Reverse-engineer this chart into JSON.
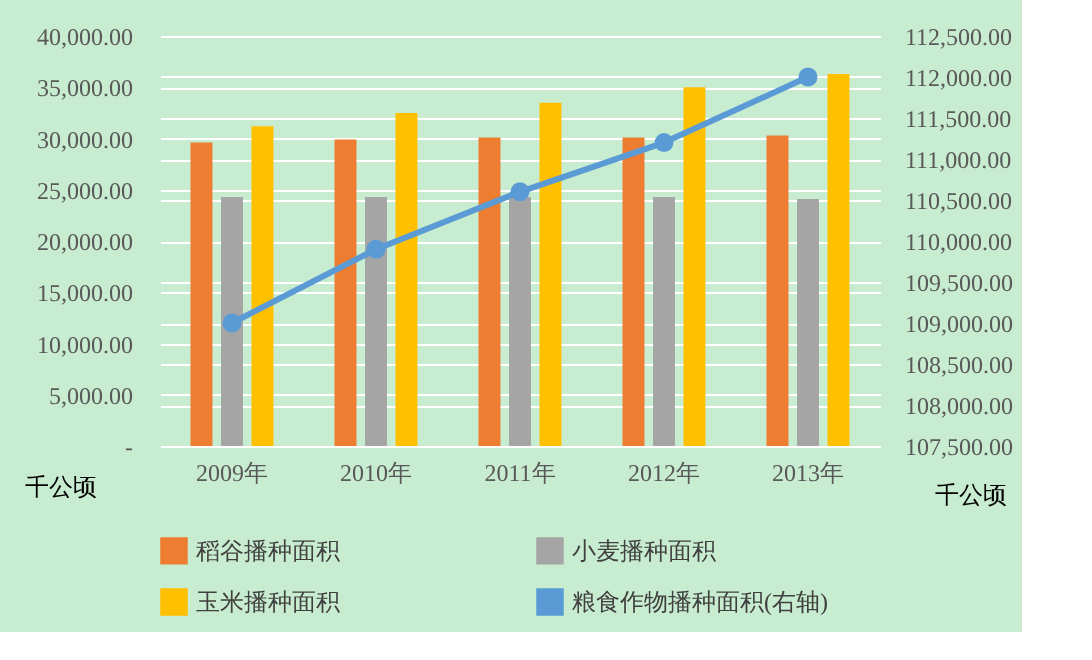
{
  "chart_data": {
    "type": "bar",
    "categories": [
      "2009年",
      "2010年",
      "2011年",
      "2012年",
      "2013年"
    ],
    "series": [
      {
        "name": "稻谷播种面积",
        "color": "#ed7d31",
        "values": [
          29600,
          29900,
          30100,
          30100,
          30300
        ]
      },
      {
        "name": "小麦播种面积",
        "color": "#a5a5a5",
        "values": [
          24300,
          24300,
          24300,
          24300,
          24100
        ]
      },
      {
        "name": "玉米播种面积",
        "color": "#ffc000",
        "values": [
          31200,
          32500,
          33500,
          35000,
          36300
        ]
      },
      {
        "name": "粮食作物播种面积(右轴)",
        "color": "#5b9bd5",
        "type": "line",
        "axis": "y2",
        "marker": "circle",
        "line_style": "solid",
        "values": [
          109000,
          109900,
          110600,
          111200,
          112000
        ]
      }
    ],
    "ylabel": "千公顷",
    "y2label": "千公顷",
    "ylim": [
      0,
      40000
    ],
    "yticks": [
      {
        "value": 0,
        "label": "-"
      },
      {
        "value": 5000,
        "label": "5,000.00"
      },
      {
        "value": 10000,
        "label": "10,000.00"
      },
      {
        "value": 15000,
        "label": "15,000.00"
      },
      {
        "value": 20000,
        "label": "20,000.00"
      },
      {
        "value": 25000,
        "label": "25,000.00"
      },
      {
        "value": 30000,
        "label": "30,000.00"
      },
      {
        "value": 35000,
        "label": "35,000.00"
      },
      {
        "value": 40000,
        "label": "40,000.00"
      }
    ],
    "y2lim": [
      107500,
      112500
    ],
    "y2ticks": [
      {
        "value": 107500,
        "label": "107,500.00"
      },
      {
        "value": 108000,
        "label": "108,000.00"
      },
      {
        "value": 108500,
        "label": "108,500.00"
      },
      {
        "value": 109000,
        "label": "109,000.00"
      },
      {
        "value": 109500,
        "label": "109,500.00"
      },
      {
        "value": 110000,
        "label": "110,000.00"
      },
      {
        "value": 110500,
        "label": "110,500.00"
      },
      {
        "value": 111000,
        "label": "111,000.00"
      },
      {
        "value": 111500,
        "label": "111,500.00"
      },
      {
        "value": 112000,
        "label": "112,000.00"
      },
      {
        "value": 112500,
        "label": "112,500.00"
      }
    ],
    "grid": true,
    "legend": "bottom"
  }
}
